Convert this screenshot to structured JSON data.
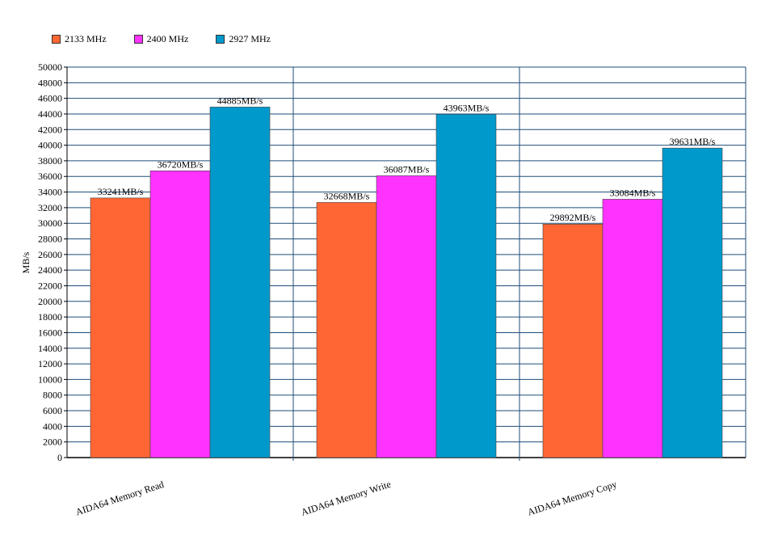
{
  "chart_data": {
    "type": "bar",
    "title": "",
    "xlabel": "",
    "ylabel": "MB/s",
    "ylim": [
      0,
      50000
    ],
    "ytick_step": 2000,
    "grid": true,
    "legend_position": "top-left",
    "categories": [
      "AIDA64 Memory Read",
      "AIDA64 Memory Write",
      "AIDA64 Memory Copy"
    ],
    "series": [
      {
        "name": "2133 MHz",
        "color": "#ff6633",
        "values": [
          33241,
          32668,
          29892
        ],
        "labels": [
          "33241MB/s",
          "32668MB/s",
          "29892MB/s"
        ]
      },
      {
        "name": "2400 MHz",
        "color": "#ff33ff",
        "values": [
          36720,
          36087,
          33084
        ],
        "labels": [
          "36720MB/s",
          "36087MB/s",
          "33084MB/s"
        ]
      },
      {
        "name": "2927 MHz",
        "color": "#0099cc",
        "values": [
          44885,
          43963,
          39631
        ],
        "labels": [
          "44885MB/s",
          "43963MB/s",
          "39631MB/s"
        ]
      }
    ]
  }
}
